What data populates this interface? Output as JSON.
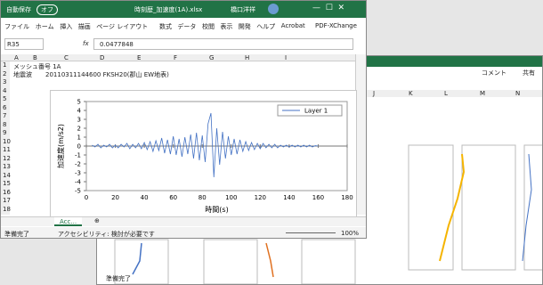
{
  "front_window": {
    "autosave": "自動保存",
    "autosave_state": "オフ",
    "file_name": "時刻歴_加速度(1A).xlsx",
    "user": "橋口洋祥",
    "tabs": [
      "ファイル",
      "ホーム",
      "挿入",
      "描画",
      "ページ レイアウト",
      "数式",
      "データ",
      "校閲",
      "表示",
      "開発",
      "ヘルプ",
      "Acrobat",
      "PDF-XChange"
    ],
    "name_box": "R35",
    "fx": "fx",
    "formula": "0.0477848",
    "columns": [
      "A",
      "B",
      "C",
      "D",
      "E",
      "F",
      "G",
      "H",
      "I"
    ],
    "rows": [
      1,
      2,
      3,
      4,
      5,
      6,
      7,
      8,
      9,
      10,
      11,
      12,
      13,
      14,
      15,
      16,
      17,
      18
    ],
    "cells": {
      "a1": "メッシュ番号 1A",
      "a2": "地震波",
      "b2": "20110311144600 FKSH20(郡山 EW地表)"
    },
    "sheet_tab": "Acc...",
    "status": "準備完了",
    "accessibility": "アクセシビリティ: 検討が必要です",
    "zoom": "100%"
  },
  "back_window": {
    "comment": "コメント",
    "share": "共有",
    "columns": [
      "J",
      "K",
      "L",
      "M",
      "N"
    ],
    "status": "準備完了"
  },
  "chart_data": {
    "type": "line",
    "x_label": "時間(s)",
    "y_label": "加速度(m/s2)",
    "xlim": [
      0,
      180
    ],
    "xticks": [
      0,
      20,
      40,
      60,
      80,
      100,
      120,
      140,
      160,
      180
    ],
    "ylim": [
      -5,
      5
    ],
    "yticks": [
      -5,
      -4,
      -3,
      -2,
      -1,
      0,
      1,
      2,
      3,
      4,
      5
    ],
    "legend": "top-right",
    "x": [
      4,
      6,
      8,
      10,
      12,
      14,
      16,
      18,
      20,
      22,
      24,
      26,
      28,
      30,
      32,
      34,
      36,
      38,
      40,
      42,
      44,
      46,
      48,
      50,
      52,
      54,
      56,
      58,
      60,
      62,
      64,
      66,
      68,
      70,
      72,
      74,
      76,
      78,
      80,
      82,
      84,
      86,
      88,
      90,
      92,
      94,
      96,
      98,
      100,
      102,
      104,
      106,
      108,
      110,
      112,
      114,
      116,
      118,
      120,
      122,
      124,
      126,
      128,
      130,
      132,
      134,
      136,
      138,
      140,
      142,
      144,
      146,
      148,
      150,
      152,
      154,
      156,
      158,
      160
    ],
    "series": [
      {
        "name": "Layer 1",
        "color": "#4472c4",
        "values": [
          0.1,
          -0.1,
          0.2,
          -0.2,
          0.1,
          -0.1,
          0.2,
          -0.2,
          0.1,
          -0.2,
          0.2,
          -0.1,
          0.3,
          -0.3,
          0.2,
          -0.2,
          0.3,
          -0.3,
          0.4,
          -0.4,
          0.5,
          -0.6,
          0.6,
          -0.5,
          0.9,
          -0.8,
          0.7,
          -0.9,
          1.1,
          -1.0,
          0.8,
          -1.2,
          1.0,
          -0.9,
          1.3,
          -1.4,
          1.5,
          -1.6,
          1.2,
          -1.8,
          2.5,
          3.7,
          -3.5,
          2.0,
          -2.1,
          1.6,
          -1.4,
          1.1,
          -1.0,
          0.8,
          -0.9,
          0.7,
          -0.6,
          0.5,
          -0.5,
          0.4,
          -0.4,
          0.3,
          -0.3,
          0.3,
          -0.2,
          0.2,
          -0.2,
          0.2,
          -0.2,
          0.1,
          -0.1,
          0.1,
          -0.1,
          0.1,
          -0.1,
          0.1,
          -0.1,
          0.1,
          -0.1,
          0.1,
          -0.1,
          0.05,
          0
        ]
      }
    ]
  }
}
